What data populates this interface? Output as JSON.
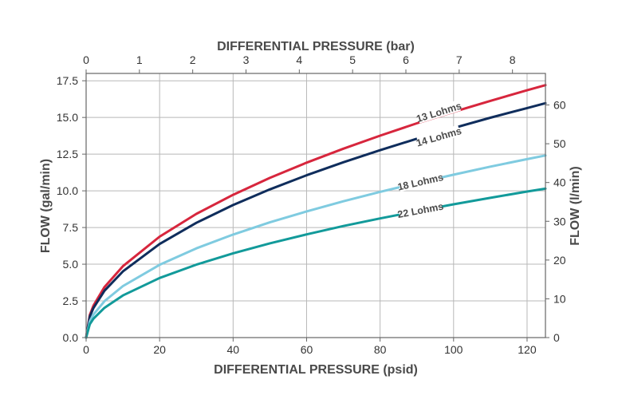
{
  "chart_data": {
    "type": "line",
    "xlabel_bottom": "DIFFERENTIAL PRESSURE (psid)",
    "xlabel_top": "DIFFERENTIAL PRESSURE (bar)",
    "ylabel_left": "FLOW (gal/min)",
    "ylabel_right": "FLOW (l/min)",
    "xlim": [
      0,
      125
    ],
    "ylim": [
      0,
      18
    ],
    "x_ticks": [
      "0",
      "20",
      "40",
      "60",
      "80",
      "100",
      "120"
    ],
    "x_tick_values": [
      0,
      20,
      40,
      60,
      80,
      100,
      120
    ],
    "y_ticks": [
      "0.0",
      "2.5",
      "5.0",
      "7.5",
      "10.0",
      "12.5",
      "15.0",
      "17.5"
    ],
    "y_tick_values": [
      0,
      2.5,
      5,
      7.5,
      10,
      12.5,
      15,
      17.5
    ],
    "top_ticks": [
      "0",
      "1",
      "2",
      "3",
      "4",
      "5",
      "6",
      "7",
      "8"
    ],
    "top_tick_values_bar": [
      0,
      1,
      2,
      3,
      4,
      5,
      6,
      7,
      8
    ],
    "right_ticks": [
      "0",
      "10",
      "20",
      "30",
      "40",
      "50",
      "60"
    ],
    "right_tick_values_lpm": [
      0,
      10,
      20,
      30,
      40,
      50,
      60
    ],
    "grid": true,
    "series": [
      {
        "name": "13 Lohms",
        "color": "#d7263d",
        "x": [
          0,
          1,
          2,
          5,
          10,
          20,
          30,
          40,
          50,
          60,
          70,
          80,
          90,
          100,
          110,
          120,
          125
        ],
        "y": [
          0,
          1.54,
          2.18,
          3.44,
          4.86,
          6.88,
          8.43,
          9.73,
          10.88,
          11.92,
          12.87,
          13.76,
          14.6,
          15.38,
          16.13,
          16.85,
          17.2
        ]
      },
      {
        "name": "14 Lohms",
        "color": "#0f2d5c",
        "x": [
          0,
          1,
          2,
          5,
          10,
          20,
          30,
          40,
          50,
          60,
          70,
          80,
          90,
          100,
          110,
          120,
          125
        ],
        "y": [
          0,
          1.43,
          2.02,
          3.19,
          4.51,
          6.38,
          7.82,
          9.03,
          10.1,
          11.06,
          11.95,
          12.77,
          13.55,
          14.28,
          14.98,
          15.64,
          15.97
        ]
      },
      {
        "name": "18 Lohms",
        "color": "#7fcbe0",
        "x": [
          0,
          1,
          2,
          5,
          10,
          20,
          30,
          40,
          50,
          60,
          70,
          80,
          90,
          100,
          110,
          120,
          125
        ],
        "y": [
          0,
          1.11,
          1.57,
          2.48,
          3.51,
          4.96,
          6.08,
          7.02,
          7.85,
          8.6,
          9.29,
          9.93,
          10.53,
          11.1,
          11.65,
          12.16,
          12.41
        ]
      },
      {
        "name": "22 Lohms",
        "color": "#129a9a",
        "x": [
          0,
          1,
          2,
          5,
          10,
          20,
          30,
          40,
          50,
          60,
          70,
          80,
          90,
          100,
          110,
          120,
          125
        ],
        "y": [
          0,
          0.91,
          1.29,
          2.03,
          2.87,
          4.06,
          4.97,
          5.74,
          6.42,
          7.03,
          7.6,
          8.12,
          8.61,
          9.08,
          9.52,
          9.95,
          10.15
        ]
      }
    ]
  }
}
